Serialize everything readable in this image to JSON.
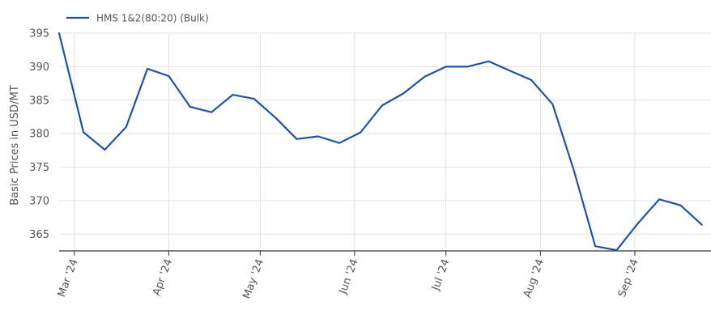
{
  "chart_data": {
    "type": "line",
    "title": "",
    "xlabel": "",
    "ylabel": "Basic Prices in USD/MT",
    "ylim": [
      362.5,
      395
    ],
    "xlim": [
      "2024-02-25",
      "2024-09-26"
    ],
    "y_ticks": [
      365,
      370,
      375,
      380,
      385,
      390,
      395
    ],
    "x_ticks": [
      {
        "date": "2024-03-01",
        "label": "Mar '24"
      },
      {
        "date": "2024-04-01",
        "label": "Apr '24"
      },
      {
        "date": "2024-05-01",
        "label": "May '24"
      },
      {
        "date": "2024-06-01",
        "label": "Jun '24"
      },
      {
        "date": "2024-07-01",
        "label": "Jul '24"
      },
      {
        "date": "2024-08-01",
        "label": "Aug '24"
      },
      {
        "date": "2024-09-01",
        "label": "Sep '24"
      }
    ],
    "grid": true,
    "legend_position": "top-left",
    "series": [
      {
        "name": "HMS 1&2(80:20) (Bulk)",
        "color": "#1f55a0",
        "points": [
          {
            "x": "2024-02-25",
            "y": 395
          },
          {
            "x": "2024-03-04",
            "y": 380.2
          },
          {
            "x": "2024-03-11",
            "y": 377.6
          },
          {
            "x": "2024-03-18",
            "y": 381
          },
          {
            "x": "2024-03-25",
            "y": 389.7
          },
          {
            "x": "2024-04-01",
            "y": 388.6
          },
          {
            "x": "2024-04-08",
            "y": 384
          },
          {
            "x": "2024-04-15",
            "y": 383.2
          },
          {
            "x": "2024-04-22",
            "y": 385.8
          },
          {
            "x": "2024-04-29",
            "y": 385.2
          },
          {
            "x": "2024-05-06",
            "y": 382.4
          },
          {
            "x": "2024-05-13",
            "y": 379.2
          },
          {
            "x": "2024-05-20",
            "y": 379.6
          },
          {
            "x": "2024-05-27",
            "y": 378.6
          },
          {
            "x": "2024-06-03",
            "y": 380.2
          },
          {
            "x": "2024-06-10",
            "y": 384.2
          },
          {
            "x": "2024-06-17",
            "y": 386
          },
          {
            "x": "2024-06-24",
            "y": 388.5
          },
          {
            "x": "2024-07-01",
            "y": 390
          },
          {
            "x": "2024-07-08",
            "y": 390
          },
          {
            "x": "2024-07-15",
            "y": 390.8
          },
          {
            "x": "2024-07-22",
            "y": 389.4
          },
          {
            "x": "2024-07-29",
            "y": 388
          },
          {
            "x": "2024-08-05",
            "y": 384.4
          },
          {
            "x": "2024-08-12",
            "y": 374.5
          },
          {
            "x": "2024-08-19",
            "y": 363.2
          },
          {
            "x": "2024-08-26",
            "y": 362.6
          },
          {
            "x": "2024-09-02",
            "y": 366.6
          },
          {
            "x": "2024-09-09",
            "y": 370.2
          },
          {
            "x": "2024-09-16",
            "y": 369.3
          },
          {
            "x": "2024-09-23",
            "y": 366.4
          }
        ]
      }
    ]
  }
}
